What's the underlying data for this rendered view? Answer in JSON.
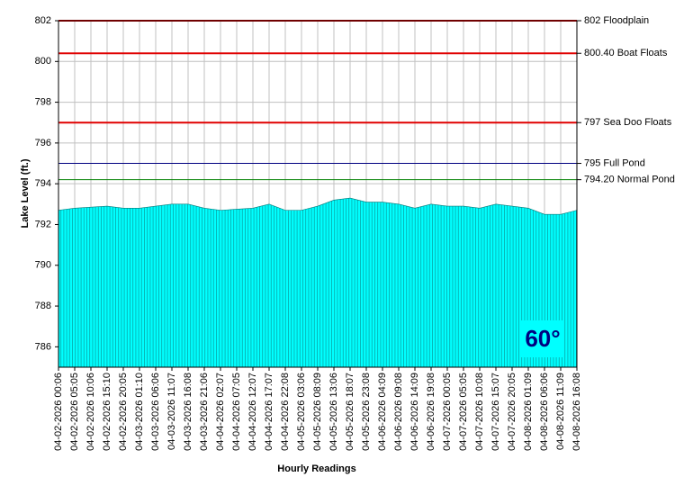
{
  "chart_data": {
    "type": "area",
    "y_label": "Lake Level (ft.)",
    "x_label": "Hourly Readings",
    "categories": [
      "04-02-2026 00:06",
      "04-02-2026 05:05",
      "04-02-2026 10:06",
      "04-02-2026 15:10",
      "04-02-2026 20:05",
      "04-03-2026 01:10",
      "04-03-2026 06:06",
      "04-03-2026 11:07",
      "04-03-2026 16:08",
      "04-03-2026 21:06",
      "04-04-2026 02:07",
      "04-04-2026 07:05",
      "04-04-2026 12:07",
      "04-04-2026 17:07",
      "04-04-2026 22:08",
      "04-05-2026 03:06",
      "04-05-2026 08:09",
      "04-05-2026 13:06",
      "04-05-2026 18:07",
      "04-05-2026 23:08",
      "04-06-2026 04:09",
      "04-06-2026 09:08",
      "04-06-2026 14:09",
      "04-06-2026 19:08",
      "04-07-2026 00:05",
      "04-07-2026 05:05",
      "04-07-2026 10:08",
      "04-07-2026 15:07",
      "04-07-2026 20:05",
      "04-08-2026 01:09",
      "04-08-2026 06:06",
      "04-08-2026 11:09",
      "04-08-2026 16:08"
    ],
    "values": [
      792.7,
      792.8,
      792.85,
      792.9,
      792.8,
      792.8,
      792.9,
      793.0,
      793.0,
      792.8,
      792.7,
      792.75,
      792.8,
      793.0,
      792.7,
      792.7,
      792.9,
      793.2,
      793.3,
      793.1,
      793.1,
      793.0,
      792.8,
      793.0,
      792.9,
      792.9,
      792.8,
      793.0,
      792.9,
      792.8,
      792.5,
      792.5,
      792.7
    ],
    "color": "#00ffff",
    "ylim": [
      785,
      802
    ],
    "yticks": [
      786,
      788,
      790,
      792,
      794,
      796,
      798,
      800,
      802
    ],
    "grid": true,
    "reference_lines": [
      {
        "value": 802,
        "label": "802 Floodplain",
        "color": "#e00000"
      },
      {
        "value": 800.4,
        "label": "800.40 Boat Floats",
        "color": "#e00000"
      },
      {
        "value": 797,
        "label": "797 Sea Doo Floats",
        "color": "#e00000"
      },
      {
        "value": 795,
        "label": "795 Full Pond",
        "color": "#000080"
      },
      {
        "value": 794.2,
        "label": "794.20 Normal Pond",
        "color": "#008000"
      }
    ],
    "badge": "60°"
  }
}
